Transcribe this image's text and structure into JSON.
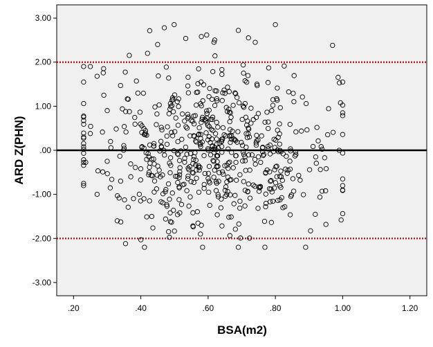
{
  "chart_data": {
    "type": "scatter",
    "xlabel": "BSA(m2)",
    "ylabel": "ARD Z(PHN)",
    "xlim": [
      0.15,
      1.25
    ],
    "ylim": [
      -3.3,
      3.3
    ],
    "x_ticks": [
      0.2,
      0.4,
      0.6,
      0.8,
      1.0,
      1.2
    ],
    "x_tick_labels": [
      ".20",
      ".40",
      ".60",
      ".80",
      "1.00",
      "1.20"
    ],
    "y_ticks": [
      3.0,
      2.0,
      1.0,
      0.0,
      -1.0,
      -2.0,
      -3.0
    ],
    "y_tick_labels": [
      "3.00",
      "2.00",
      "1.00",
      ".00",
      "-1.00",
      "-2.00",
      "-3.00"
    ],
    "reference_lines": [
      {
        "y": 0.0,
        "color": "#000000",
        "style": "solid"
      },
      {
        "y": 2.0,
        "color": "#b22222",
        "style": "dotted"
      },
      {
        "y": -2.0,
        "color": "#b22222",
        "style": "dotted"
      }
    ],
    "plot_background": "#f0f0f0",
    "marker_color": "#000000",
    "point_count": 650,
    "x_distribution": {
      "min": 0.23,
      "max": 1.0,
      "center": 0.62,
      "spread": 0.18
    },
    "y_distribution": {
      "mean": 0.05,
      "sd": 0.95,
      "min": -2.2,
      "max": 2.85
    },
    "series": [
      {
        "points_sample": [
          [
            0.25,
            1.9
          ],
          [
            0.27,
            1.68
          ],
          [
            0.23,
            0.3
          ],
          [
            0.25,
            0.38
          ],
          [
            0.23,
            -0.8
          ],
          [
            0.27,
            -1.0
          ],
          [
            0.29,
            1.25
          ],
          [
            0.3,
            0.9
          ],
          [
            0.31,
            0.2
          ],
          [
            0.3,
            -0.25
          ],
          [
            0.33,
            -1.6
          ],
          [
            0.34,
            -0.7
          ],
          [
            0.4,
            -2.03
          ],
          [
            0.42,
            2.2
          ],
          [
            0.45,
            2.4
          ],
          [
            0.47,
            2.78
          ],
          [
            0.58,
            2.58
          ],
          [
            0.69,
            2.72
          ],
          [
            0.72,
            2.55
          ],
          [
            0.74,
            2.45
          ],
          [
            0.8,
            2.85
          ],
          [
            0.97,
            2.38
          ],
          [
            0.69,
            -2.2
          ],
          [
            0.89,
            -2.2
          ],
          [
            0.58,
            -1.7
          ],
          [
            1.0,
            -0.9
          ],
          [
            1.0,
            -0.65
          ],
          [
            1.0,
            0.85
          ],
          [
            1.0,
            1.55
          ],
          [
            0.99,
            0.0
          ]
        ]
      }
    ]
  }
}
